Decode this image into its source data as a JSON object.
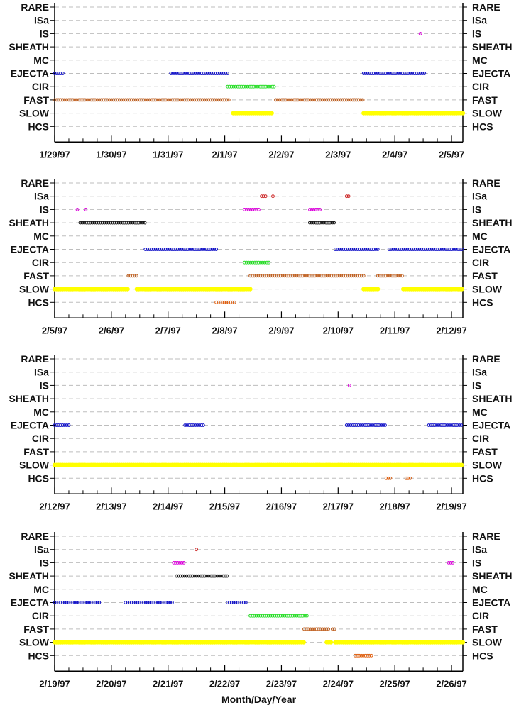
{
  "colors": {
    "axis": "#000000",
    "gridline": "#bdbdbd",
    "RARE": "#cc0000",
    "ISa": "#cc2222",
    "IS": "#dd00dd",
    "SHEATH": "#111111",
    "MC": "#444444",
    "EJECTA": "#1010c8",
    "CIR": "#22dd22",
    "FAST": "#c06020",
    "SLOW": "#ffff00",
    "HCS": "#e06010"
  },
  "chart_data": {
    "type": "scatter",
    "categories": [
      "RARE",
      "ISa",
      "IS",
      "SHEATH",
      "MC",
      "EJECTA",
      "CIR",
      "FAST",
      "SLOW",
      "HCS"
    ],
    "xlabel": "Month/Day/Year",
    "x_units": "day",
    "panels": [
      {
        "x_ticks": [
          "1/29/97",
          "1/30/97",
          "1/31/97",
          "2/1/97",
          "2/2/97",
          "2/3/97",
          "2/4/97",
          "2/5/97"
        ],
        "xlim": [
          0,
          7.2
        ],
        "series": [
          {
            "category": "IS",
            "intervals": [
              [
                6.45,
                6.47
              ]
            ]
          },
          {
            "category": "EJECTA",
            "intervals": [
              [
                0.0,
                0.15
              ],
              [
                2.05,
                3.05
              ],
              [
                5.45,
                6.55
              ]
            ]
          },
          {
            "category": "CIR",
            "intervals": [
              [
                3.05,
                3.9
              ]
            ]
          },
          {
            "category": "FAST",
            "intervals": [
              [
                0.0,
                3.1
              ],
              [
                3.9,
                5.45
              ]
            ]
          },
          {
            "category": "SLOW",
            "intervals": [
              [
                3.15,
                3.85
              ],
              [
                5.45,
                7.2
              ]
            ]
          }
        ]
      },
      {
        "x_ticks": [
          "2/5/97",
          "2/6/97",
          "2/7/97",
          "2/8/97",
          "2/9/97",
          "2/10/97",
          "2/11/97",
          "2/12/97"
        ],
        "xlim": [
          0,
          7.2
        ],
        "series": [
          {
            "category": "ISa",
            "intervals": [
              [
                3.65,
                3.75
              ],
              [
                3.85,
                3.87
              ],
              [
                5.15,
                5.22
              ]
            ]
          },
          {
            "category": "IS",
            "intervals": [
              [
                0.4,
                0.42
              ],
              [
                0.55,
                0.57
              ],
              [
                3.35,
                3.6
              ],
              [
                4.5,
                4.7
              ]
            ]
          },
          {
            "category": "SHEATH",
            "intervals": [
              [
                0.45,
                1.6
              ],
              [
                4.5,
                4.95
              ]
            ]
          },
          {
            "category": "EJECTA",
            "intervals": [
              [
                1.6,
                2.85
              ],
              [
                4.95,
                5.7
              ],
              [
                5.9,
                7.2
              ]
            ]
          },
          {
            "category": "CIR",
            "intervals": [
              [
                3.35,
                3.8
              ]
            ]
          },
          {
            "category": "FAST",
            "intervals": [
              [
                1.3,
                1.45
              ],
              [
                3.45,
                5.45
              ],
              [
                5.7,
                6.15
              ]
            ]
          },
          {
            "category": "SLOW",
            "intervals": [
              [
                0.0,
                1.3
              ],
              [
                1.45,
                3.45
              ],
              [
                5.45,
                5.7
              ],
              [
                6.15,
                7.2
              ]
            ]
          },
          {
            "category": "HCS",
            "intervals": [
              [
                2.85,
                3.2
              ]
            ]
          }
        ]
      },
      {
        "x_ticks": [
          "2/12/97",
          "2/13/97",
          "2/14/97",
          "2/15/97",
          "2/16/97",
          "2/17/97",
          "2/18/97",
          "2/19/97"
        ],
        "xlim": [
          0,
          7.2
        ],
        "series": [
          {
            "category": "IS",
            "intervals": [
              [
                5.2,
                5.22
              ]
            ]
          },
          {
            "category": "EJECTA",
            "intervals": [
              [
                0.0,
                0.25
              ],
              [
                2.3,
                2.65
              ],
              [
                5.15,
                5.85
              ],
              [
                6.6,
                7.2
              ]
            ]
          },
          {
            "category": "SLOW",
            "intervals": [
              [
                0.0,
                7.2
              ]
            ]
          },
          {
            "category": "HCS",
            "intervals": [
              [
                5.85,
                5.95
              ],
              [
                6.2,
                6.28
              ]
            ]
          }
        ]
      },
      {
        "x_ticks": [
          "2/19/97",
          "2/20/97",
          "2/21/97",
          "2/22/97",
          "2/23/97",
          "2/24/97",
          "2/25/97",
          "2/26/97"
        ],
        "xlim": [
          0,
          7.2
        ],
        "series": [
          {
            "category": "ISa",
            "intervals": [
              [
                2.5,
                2.52
              ]
            ]
          },
          {
            "category": "IS",
            "intervals": [
              [
                2.1,
                2.3
              ],
              [
                6.95,
                7.05
              ]
            ]
          },
          {
            "category": "SHEATH",
            "intervals": [
              [
                2.15,
                3.05
              ]
            ]
          },
          {
            "category": "EJECTA",
            "intervals": [
              [
                0.0,
                0.8
              ],
              [
                1.25,
                2.1
              ],
              [
                3.05,
                3.4
              ]
            ]
          },
          {
            "category": "CIR",
            "intervals": [
              [
                3.45,
                4.45
              ]
            ]
          },
          {
            "category": "FAST",
            "intervals": [
              [
                4.4,
                4.85
              ],
              [
                4.9,
                4.97
              ]
            ]
          },
          {
            "category": "SLOW",
            "intervals": [
              [
                0.0,
                4.4
              ],
              [
                4.8,
                4.9
              ],
              [
                4.95,
                7.2
              ]
            ]
          },
          {
            "category": "HCS",
            "intervals": [
              [
                5.3,
                5.6
              ]
            ]
          }
        ]
      }
    ]
  }
}
